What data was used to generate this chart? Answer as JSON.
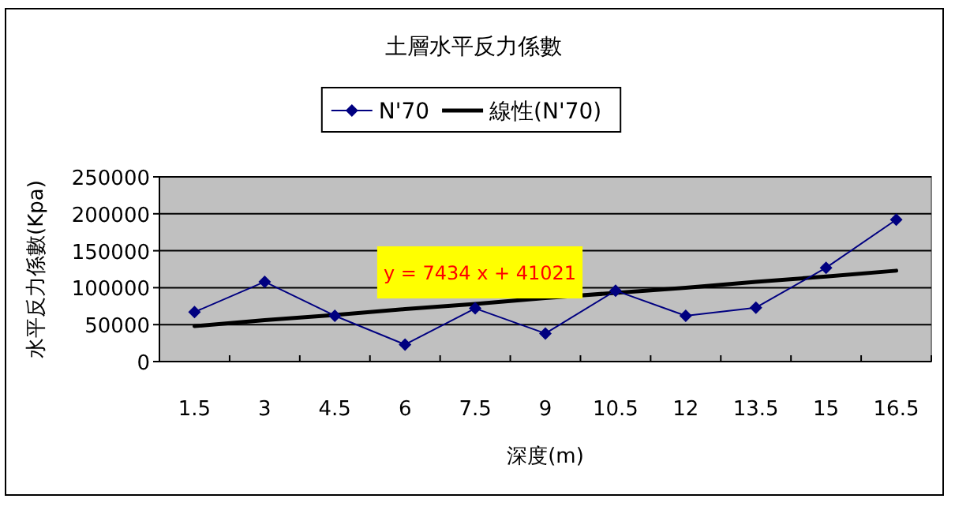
{
  "chart_data": {
    "type": "line",
    "title": "土層水平反力係數",
    "xlabel": "深度(m)",
    "ylabel": "水平反力係數(Kpa)",
    "categories": [
      "1.5",
      "3",
      "4.5",
      "6",
      "7.5",
      "9",
      "10.5",
      "12",
      "13.5",
      "15",
      "16.5"
    ],
    "series": [
      {
        "name": "N'70",
        "color": "#000080",
        "marker": "diamond",
        "values": [
          67000,
          108000,
          62000,
          23000,
          72000,
          38000,
          96000,
          62000,
          73000,
          127000,
          192000
        ]
      },
      {
        "name": "線性(N'70)",
        "color": "#000000",
        "marker": "none",
        "values": [
          48000,
          56000,
          63000,
          71000,
          78000,
          86000,
          93000,
          100000,
          108000,
          115000,
          123000
        ]
      }
    ],
    "ylim": [
      0,
      250000
    ],
    "yticks": [
      0,
      50000,
      100000,
      150000,
      200000,
      250000
    ],
    "grid": "y",
    "legend": "top",
    "annotations": [
      "y = 7434 x + 41021"
    ]
  }
}
